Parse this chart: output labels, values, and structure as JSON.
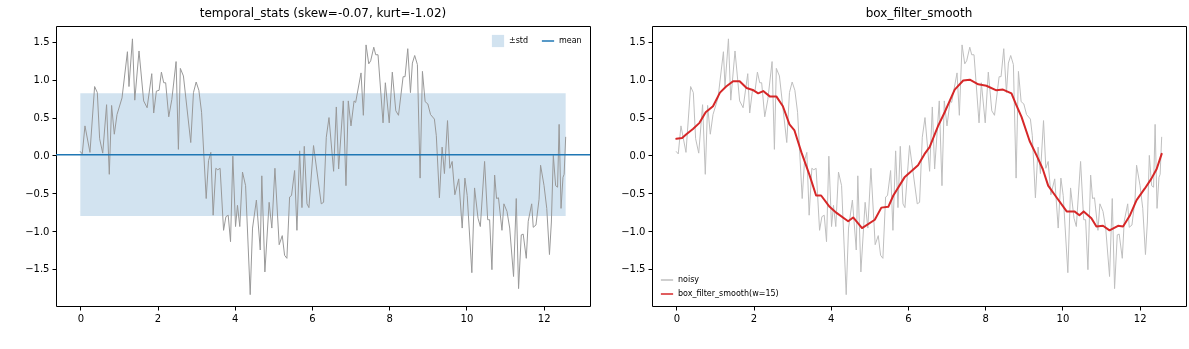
{
  "chart_data": [
    {
      "type": "line",
      "title": "temporal_stats (skew=-0.07, kurt=-1.02)",
      "xlim": [
        -0.63,
        13.2
      ],
      "ylim": [
        -1.99,
        1.71
      ],
      "xticks": [
        0,
        2,
        4,
        6,
        8,
        10,
        12
      ],
      "yticks": [
        {
          "value": -1.5,
          "label": "−1.5"
        },
        {
          "value": -1,
          "label": "−1.0"
        },
        {
          "value": -0.5,
          "label": "−0.5"
        },
        {
          "value": 0,
          "label": "0.0"
        },
        {
          "value": 0.5,
          "label": "0.5"
        },
        {
          "value": 1,
          "label": "1.0"
        },
        {
          "value": 1.5,
          "label": "1.5"
        }
      ],
      "grid": false,
      "legend": "top right",
      "series": [
        {
          "color": "#999999",
          "x": [
            0,
            0.05,
            0.12,
            0.25,
            0.37,
            0.44,
            0.5,
            0.58,
            0.68,
            0.75,
            0.81,
            0.88,
            0.95,
            1.08,
            1.22,
            1.26,
            1.35,
            1.41,
            1.52,
            1.64,
            1.73,
            1.85,
            1.9,
            1.97,
            2.04,
            2.1,
            2.16,
            2.21,
            2.29,
            2.37,
            2.48,
            2.54,
            2.59,
            2.67,
            2.86,
            2.93,
            3.0,
            3.07,
            3.14,
            3.26,
            3.32,
            3.38,
            3.44,
            3.51,
            3.56,
            3.62,
            3.71,
            3.77,
            3.83,
            3.89,
            3.95,
            4.02,
            4.07,
            4.13,
            4.2,
            4.28,
            4.4,
            4.46,
            4.56,
            4.66,
            4.7,
            4.78,
            4.89,
            4.96,
            5.04,
            5.15,
            5.23,
            5.29,
            5.35,
            5.42,
            5.47,
            5.55,
            5.61,
            5.68,
            5.74,
            5.8,
            5.87,
            5.92,
            6.04,
            6.24,
            6.3,
            6.37,
            6.44,
            6.56,
            6.63,
            6.69,
            6.81,
            6.88,
            6.94,
            7.01,
            7.09,
            7.13,
            7.27,
            7.33,
            7.4,
            7.47,
            7.52,
            7.6,
            7.65,
            7.71,
            7.84,
            7.9,
            8.0,
            8.08,
            8.17,
            8.24,
            8.36,
            8.41,
            8.48,
            8.55,
            8.6,
            8.66,
            8.73,
            8.8,
            8.86,
            8.93,
            9.0,
            9.07,
            9.17,
            9.22,
            9.3,
            9.37,
            9.43,
            9.51,
            9.57,
            9.63,
            9.7,
            9.8,
            9.89,
            9.96,
            10.02,
            10.14,
            10.21,
            10.3,
            10.36,
            10.47,
            10.55,
            10.6,
            10.66,
            10.73,
            10.78,
            10.83,
            10.92,
            10.97,
            11.05,
            11.12,
            11.22,
            11.29,
            11.35,
            11.42,
            11.47,
            11.55,
            11.6,
            11.69,
            11.73,
            11.8,
            11.88,
            11.92,
            12.01,
            12.08,
            12.15,
            12.2,
            12.25,
            12.31,
            12.36,
            12.4,
            12.45,
            12.5,
            12.53,
            12.57
          ],
          "values": [
            0.05,
            0.02,
            0.39,
            0.04,
            0.91,
            0.83,
            0.22,
            0.03,
            0.67,
            -0.25,
            0.66,
            0.28,
            0.54,
            0.76,
            1.37,
            0.91,
            1.54,
            0.73,
            1.38,
            0.72,
            0.63,
            1.08,
            0.56,
            0.85,
            0.86,
            1.1,
            0.96,
            0.96,
            0.51,
            0.74,
            1.24,
            0.08,
            1.15,
            1.05,
            0.17,
            0.83,
            0.97,
            0.86,
            0.57,
            -0.57,
            -0.07,
            0.04,
            -0.79,
            -0.17,
            -0.19,
            -0.17,
            -0.99,
            -0.81,
            -0.79,
            -1.14,
            -0.01,
            -0.94,
            -0.66,
            -0.94,
            -0.22,
            -0.4,
            -1.84,
            -0.96,
            -0.59,
            -1.25,
            -0.27,
            -1.54,
            -0.62,
            -0.96,
            -0.17,
            -1.18,
            -1.06,
            -1.32,
            -1.36,
            -0.55,
            -0.53,
            -0.2,
            -0.99,
            0.06,
            -0.69,
            0.12,
            -0.64,
            -0.69,
            0.13,
            -0.64,
            -0.62,
            0.24,
            0.5,
            -0.21,
            0.64,
            -0.18,
            0.72,
            -0.4,
            0.72,
            0.39,
            0.72,
            0.7,
            1.09,
            0.53,
            1.46,
            1.21,
            1.25,
            1.43,
            1.33,
            1.33,
            0.43,
            0.96,
            0.43,
            1.1,
            0.59,
            0.53,
            1.04,
            1.04,
            1.41,
            0.83,
            1.22,
            1.32,
            1.2,
            -0.3,
            1.11,
            0.71,
            0.68,
            0.54,
            0.48,
            0.26,
            -0.56,
            0.11,
            -0.24,
            0.46,
            -0.17,
            -0.08,
            -0.52,
            -0.31,
            -0.96,
            -0.3,
            -0.53,
            -1.55,
            -0.43,
            -0.83,
            -0.94,
            -0.08,
            -0.85,
            -0.85,
            -1.51,
            -0.26,
            -0.57,
            -0.56,
            -0.99,
            -0.64,
            -0.74,
            -0.96,
            -1.6,
            -0.57,
            -1.76,
            -1.05,
            -1.04,
            -1.36,
            -0.87,
            -0.64,
            -0.95,
            -0.92,
            -0.58,
            -0.13,
            -0.4,
            -0.7,
            -1.31,
            -0.88,
            0.0,
            -0.4,
            -0.42,
            0.41,
            -0.7,
            -0.29,
            -0.25,
            0.24
          ]
        }
      ],
      "ref_lines": [
        {
          "axis": "y",
          "value": 0.01,
          "label": "mean",
          "color": "#1f77b4"
        }
      ],
      "bands": [
        {
          "axis": "y",
          "from": -0.8,
          "to": 0.82,
          "label": "±std",
          "color": "#d2e3f0"
        }
      ]
    },
    {
      "type": "line",
      "title": "box_filter_smooth",
      "xlim": [
        -0.63,
        13.2
      ],
      "ylim": [
        -1.99,
        1.71
      ],
      "xticks": [
        0,
        2,
        4,
        6,
        8,
        10,
        12
      ],
      "yticks": [
        {
          "value": -1.5,
          "label": "−1.5"
        },
        {
          "value": -1,
          "label": "−1.0"
        },
        {
          "value": -0.5,
          "label": "−0.5"
        },
        {
          "value": 0,
          "label": "0.0"
        },
        {
          "value": 0.5,
          "label": "0.5"
        },
        {
          "value": 1,
          "label": "1.0"
        },
        {
          "value": 1.5,
          "label": "1.5"
        }
      ],
      "grid": false,
      "legend": "bottom left",
      "series": [
        {
          "name": "noisy",
          "color": "#bfbfbf",
          "x": [
            0,
            0.05,
            0.12,
            0.25,
            0.37,
            0.44,
            0.5,
            0.58,
            0.68,
            0.75,
            0.81,
            0.88,
            0.95,
            1.08,
            1.22,
            1.26,
            1.35,
            1.41,
            1.52,
            1.64,
            1.73,
            1.85,
            1.9,
            1.97,
            2.04,
            2.1,
            2.16,
            2.21,
            2.29,
            2.37,
            2.48,
            2.54,
            2.59,
            2.67,
            2.86,
            2.93,
            3.0,
            3.07,
            3.14,
            3.26,
            3.32,
            3.38,
            3.44,
            3.51,
            3.56,
            3.62,
            3.71,
            3.77,
            3.83,
            3.89,
            3.95,
            4.02,
            4.07,
            4.13,
            4.2,
            4.28,
            4.4,
            4.46,
            4.56,
            4.66,
            4.7,
            4.78,
            4.89,
            4.96,
            5.04,
            5.15,
            5.23,
            5.29,
            5.35,
            5.42,
            5.47,
            5.55,
            5.61,
            5.68,
            5.74,
            5.8,
            5.87,
            5.92,
            6.04,
            6.24,
            6.3,
            6.37,
            6.44,
            6.56,
            6.63,
            6.69,
            6.81,
            6.88,
            6.94,
            7.01,
            7.09,
            7.13,
            7.27,
            7.33,
            7.4,
            7.47,
            7.52,
            7.6,
            7.65,
            7.71,
            7.84,
            7.9,
            8.0,
            8.08,
            8.17,
            8.24,
            8.36,
            8.41,
            8.48,
            8.55,
            8.6,
            8.66,
            8.73,
            8.8,
            8.86,
            8.93,
            9.0,
            9.07,
            9.17,
            9.22,
            9.3,
            9.37,
            9.43,
            9.51,
            9.57,
            9.63,
            9.7,
            9.8,
            9.89,
            9.96,
            10.02,
            10.14,
            10.21,
            10.3,
            10.36,
            10.47,
            10.55,
            10.6,
            10.66,
            10.73,
            10.78,
            10.83,
            10.92,
            10.97,
            11.05,
            11.12,
            11.22,
            11.29,
            11.35,
            11.42,
            11.47,
            11.55,
            11.6,
            11.69,
            11.73,
            11.8,
            11.88,
            11.92,
            12.01,
            12.08,
            12.15,
            12.2,
            12.25,
            12.31,
            12.36,
            12.4,
            12.45,
            12.5,
            12.53,
            12.57
          ],
          "values": [
            0.05,
            0.02,
            0.39,
            0.04,
            0.91,
            0.83,
            0.22,
            0.03,
            0.67,
            -0.25,
            0.66,
            0.28,
            0.54,
            0.76,
            1.37,
            0.91,
            1.54,
            0.73,
            1.38,
            0.72,
            0.63,
            1.08,
            0.56,
            0.85,
            0.86,
            1.1,
            0.96,
            0.96,
            0.51,
            0.74,
            1.24,
            0.08,
            1.15,
            1.05,
            0.17,
            0.83,
            0.97,
            0.86,
            0.57,
            -0.57,
            -0.07,
            0.04,
            -0.79,
            -0.17,
            -0.19,
            -0.17,
            -0.99,
            -0.81,
            -0.79,
            -1.14,
            -0.01,
            -0.94,
            -0.66,
            -0.94,
            -0.22,
            -0.4,
            -1.84,
            -0.96,
            -0.59,
            -1.25,
            -0.27,
            -1.54,
            -0.62,
            -0.96,
            -0.17,
            -1.18,
            -1.06,
            -1.32,
            -1.36,
            -0.55,
            -0.53,
            -0.2,
            -0.99,
            0.06,
            -0.69,
            0.12,
            -0.64,
            -0.69,
            0.13,
            -0.64,
            -0.62,
            0.24,
            0.5,
            -0.21,
            0.64,
            -0.18,
            0.72,
            -0.4,
            0.72,
            0.39,
            0.72,
            0.7,
            1.09,
            0.53,
            1.46,
            1.21,
            1.25,
            1.43,
            1.33,
            1.33,
            0.43,
            0.96,
            0.43,
            1.1,
            0.59,
            0.53,
            1.04,
            1.04,
            1.41,
            0.83,
            1.22,
            1.32,
            1.2,
            -0.3,
            1.11,
            0.71,
            0.68,
            0.54,
            0.48,
            0.26,
            -0.56,
            0.11,
            -0.24,
            0.46,
            -0.17,
            -0.08,
            -0.52,
            -0.31,
            -0.96,
            -0.3,
            -0.53,
            -1.55,
            -0.43,
            -0.83,
            -0.94,
            -0.08,
            -0.85,
            -0.85,
            -1.51,
            -0.26,
            -0.57,
            -0.56,
            -0.99,
            -0.64,
            -0.74,
            -0.96,
            -1.6,
            -0.57,
            -1.76,
            -1.05,
            -1.04,
            -1.36,
            -0.87,
            -0.64,
            -0.95,
            -0.92,
            -0.58,
            -0.13,
            -0.4,
            -0.7,
            -1.31,
            -0.88,
            0.0,
            -0.4,
            -0.42,
            0.41,
            -0.7,
            -0.29,
            -0.25,
            0.24
          ]
        },
        {
          "name": "box_filter_smooth(w=15)",
          "color": "#d62728",
          "x": [
            0,
            0.15,
            0.26,
            0.43,
            0.6,
            0.76,
            0.95,
            1.13,
            1.29,
            1.47,
            1.64,
            1.82,
            2.0,
            2.12,
            2.25,
            2.42,
            2.59,
            2.76,
            2.93,
            3.06,
            3.24,
            3.45,
            3.62,
            3.75,
            3.97,
            4.15,
            4.45,
            4.58,
            4.81,
            5.14,
            5.31,
            5.49,
            5.62,
            5.91,
            6.26,
            6.43,
            6.56,
            6.78,
            6.95,
            7.08,
            7.21,
            7.43,
            7.6,
            7.82,
            8.03,
            8.29,
            8.46,
            8.68,
            8.8,
            8.94,
            9.15,
            9.33,
            9.49,
            9.63,
            9.84,
            10.11,
            10.31,
            10.44,
            10.55,
            10.75,
            10.88,
            11.05,
            11.22,
            11.44,
            11.57,
            11.75,
            11.92,
            12.13,
            12.3,
            12.44,
            12.57
          ],
          "values": [
            0.22,
            0.23,
            0.28,
            0.35,
            0.43,
            0.57,
            0.65,
            0.83,
            0.91,
            0.98,
            0.98,
            0.89,
            0.86,
            0.82,
            0.85,
            0.78,
            0.78,
            0.65,
            0.41,
            0.33,
            0.04,
            -0.26,
            -0.53,
            -0.53,
            -0.68,
            -0.76,
            -0.87,
            -0.82,
            -0.96,
            -0.85,
            -0.69,
            -0.68,
            -0.53,
            -0.29,
            -0.13,
            0.02,
            0.11,
            0.39,
            0.57,
            0.72,
            0.87,
            0.99,
            1.0,
            0.94,
            0.92,
            0.86,
            0.87,
            0.82,
            0.67,
            0.51,
            0.19,
            0.0,
            -0.18,
            -0.4,
            -0.55,
            -0.74,
            -0.74,
            -0.79,
            -0.74,
            -0.83,
            -0.94,
            -0.93,
            -0.99,
            -0.93,
            -0.94,
            -0.79,
            -0.59,
            -0.44,
            -0.31,
            -0.18,
            0.02
          ]
        }
      ]
    }
  ]
}
